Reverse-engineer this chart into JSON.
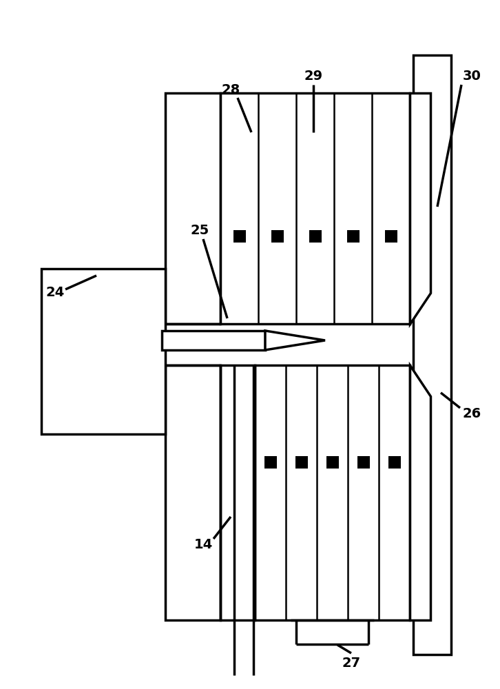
{
  "bg_color": "#ffffff",
  "lc": "#000000",
  "lw": 2.5,
  "tlw": 1.8,
  "fig_w": 7.26,
  "fig_h": 10.0
}
